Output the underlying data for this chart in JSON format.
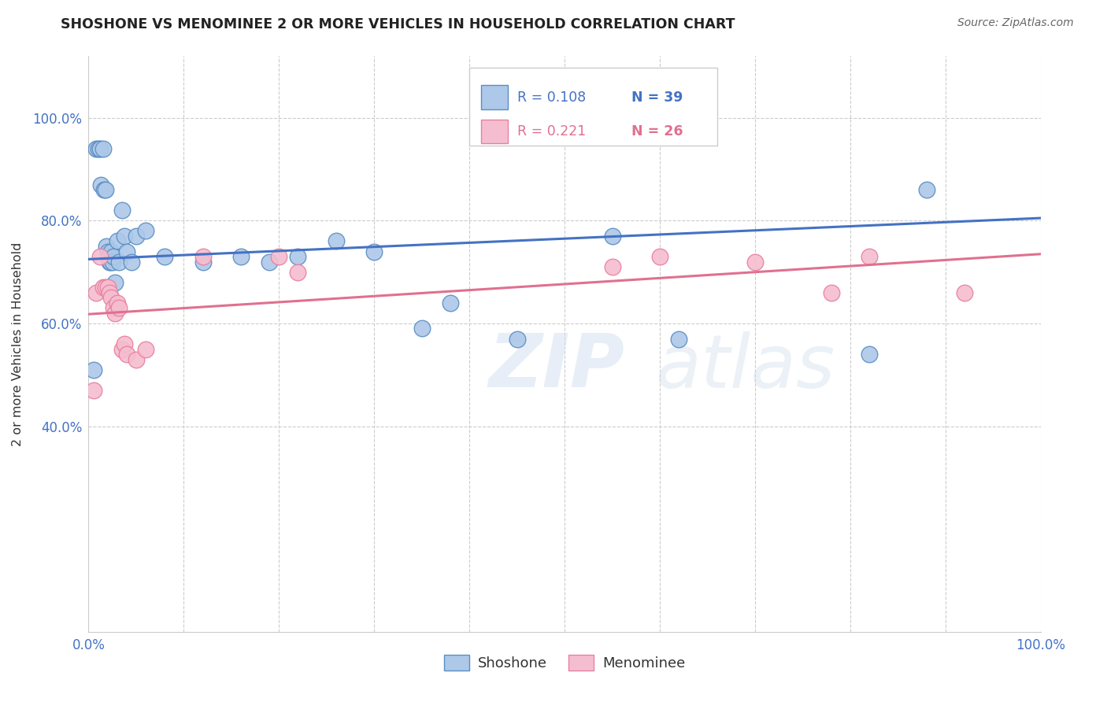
{
  "title": "SHOSHONE VS MENOMINEE 2 OR MORE VEHICLES IN HOUSEHOLD CORRELATION CHART",
  "source": "Source: ZipAtlas.com",
  "ylabel": "2 or more Vehicles in Household",
  "shoshone_label": "Shoshone",
  "menominee_label": "Menominee",
  "watermark_zip": "ZIP",
  "watermark_atlas": "atlas",
  "blue_fill": "#adc8e8",
  "pink_fill": "#f5bdd0",
  "blue_edge": "#5b8ec4",
  "pink_edge": "#e8819e",
  "blue_line": "#4472c4",
  "pink_line": "#e07090",
  "blue_text": "#4472c4",
  "pink_text": "#e07090",
  "grid_color": "#cccccc",
  "bg_color": "#ffffff",
  "legend_R_blue": "R = 0.108",
  "legend_N_blue": "N = 39",
  "legend_R_pink": "R = 0.221",
  "legend_N_pink": "N = 26",
  "shoshone_x": [
    0.005,
    0.008,
    0.01,
    0.012,
    0.013,
    0.015,
    0.016,
    0.018,
    0.019,
    0.02,
    0.021,
    0.022,
    0.023,
    0.024,
    0.025,
    0.026,
    0.028,
    0.03,
    0.032,
    0.035,
    0.038,
    0.04,
    0.045,
    0.05,
    0.06,
    0.08,
    0.12,
    0.16,
    0.19,
    0.22,
    0.26,
    0.3,
    0.35,
    0.38,
    0.45,
    0.55,
    0.62,
    0.82,
    0.88
  ],
  "shoshone_y": [
    0.51,
    0.94,
    0.94,
    0.94,
    0.87,
    0.94,
    0.86,
    0.86,
    0.75,
    0.74,
    0.73,
    0.72,
    0.72,
    0.74,
    0.72,
    0.73,
    0.68,
    0.76,
    0.72,
    0.82,
    0.77,
    0.74,
    0.72,
    0.77,
    0.78,
    0.73,
    0.72,
    0.73,
    0.72,
    0.73,
    0.76,
    0.74,
    0.59,
    0.64,
    0.57,
    0.77,
    0.57,
    0.54,
    0.86
  ],
  "menominee_x": [
    0.005,
    0.008,
    0.012,
    0.015,
    0.018,
    0.02,
    0.022,
    0.024,
    0.026,
    0.028,
    0.03,
    0.032,
    0.035,
    0.038,
    0.04,
    0.05,
    0.06,
    0.12,
    0.2,
    0.22,
    0.55,
    0.6,
    0.7,
    0.78,
    0.82,
    0.92
  ],
  "menominee_y": [
    0.47,
    0.66,
    0.73,
    0.67,
    0.67,
    0.67,
    0.66,
    0.65,
    0.63,
    0.62,
    0.64,
    0.63,
    0.55,
    0.56,
    0.54,
    0.53,
    0.55,
    0.73,
    0.73,
    0.7,
    0.71,
    0.73,
    0.72,
    0.66,
    0.73,
    0.66
  ],
  "blue_trendline_x": [
    0.0,
    1.0
  ],
  "blue_trendline_y": [
    0.725,
    0.805
  ],
  "pink_trendline_x": [
    0.0,
    1.0
  ],
  "pink_trendline_y": [
    0.618,
    0.735
  ],
  "xlim": [
    0.0,
    1.0
  ],
  "ylim": [
    0.0,
    1.12
  ],
  "ytick_vals": [
    0.4,
    0.6,
    0.8,
    1.0
  ],
  "ytick_labels": [
    "40.0%",
    "60.0%",
    "80.0%",
    "100.0%"
  ],
  "xtick_vals": [
    0.0,
    0.1,
    0.2,
    0.3,
    0.4,
    0.5,
    0.6,
    0.7,
    0.8,
    0.9,
    1.0
  ],
  "xtick_labels": [
    "0.0%",
    "",
    "",
    "",
    "",
    "",
    "",
    "",
    "",
    "",
    "100.0%"
  ]
}
